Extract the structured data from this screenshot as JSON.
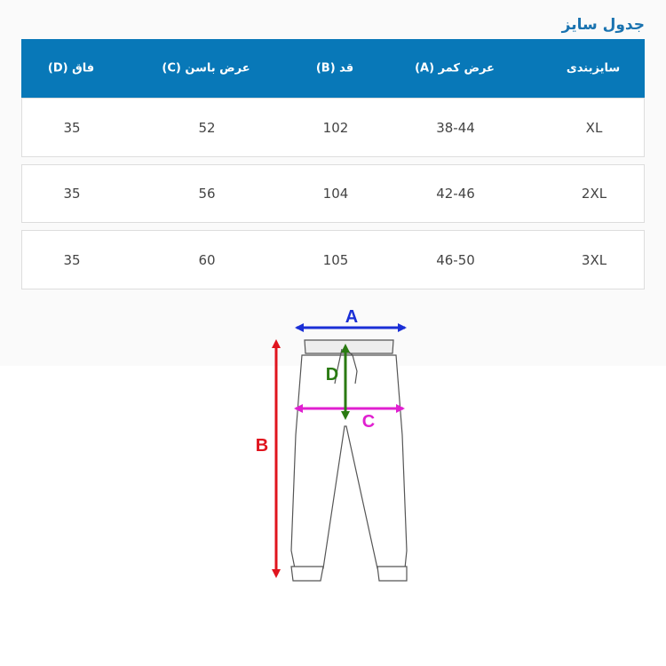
{
  "title": "جدول سایز",
  "headers": [
    "سایزبندی",
    "عرض کمر (A)",
    "قد (B)",
    "عرض باسن (C)",
    "فاق (D)"
  ],
  "rows": [
    [
      "XL",
      "38-44",
      "102",
      "52",
      "35"
    ],
    [
      "2XL",
      "42-46",
      "104",
      "56",
      "35"
    ],
    [
      "3XL",
      "46-50",
      "105",
      "60",
      "35"
    ]
  ],
  "diagram": {
    "a": "A",
    "b": "B",
    "c": "C",
    "d": "D"
  },
  "colors": {
    "header": "#0878b8",
    "a": "#1a2fd6",
    "b": "#e0141e",
    "c": "#e020d0",
    "d": "#2a7a12"
  }
}
